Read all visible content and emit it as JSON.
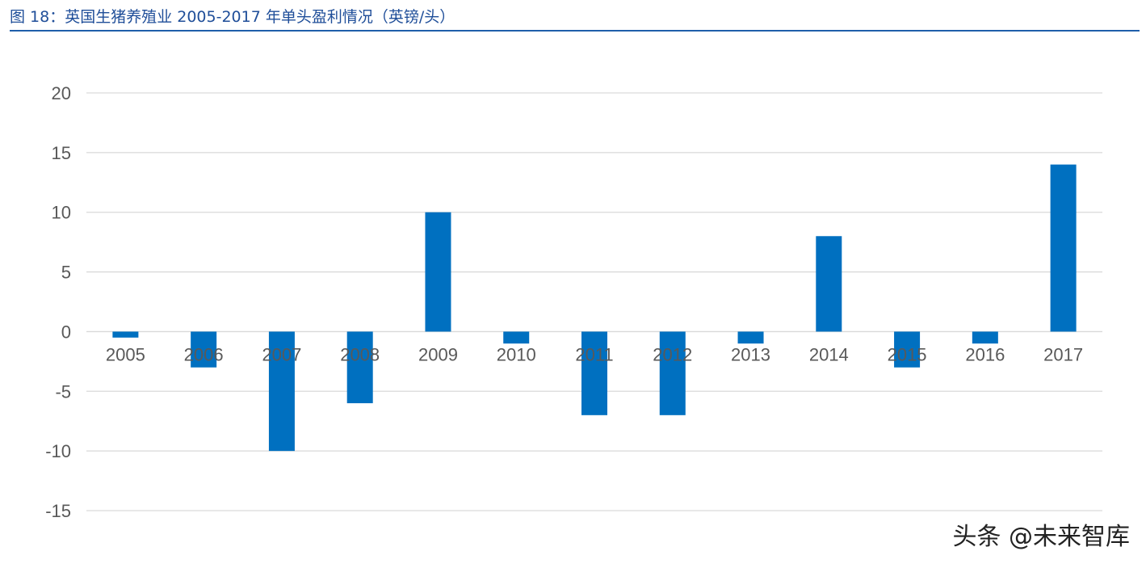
{
  "header": {
    "title": "图 18：英国生猪养殖业 2005-2017 年单头盈利情况（英镑/头）"
  },
  "watermark": "头条 @未来智库",
  "colors": {
    "bar": "#0070c0",
    "grid": "#d9d9d9",
    "title": "#1f4e99",
    "rule": "#1f5faa"
  },
  "chart_data": {
    "type": "bar",
    "title": "图 18：英国生猪养殖业 2005-2017 年单头盈利情况（英镑/头）",
    "xlabel": "",
    "ylabel": "",
    "categories": [
      "2005",
      "2006",
      "2007",
      "2008",
      "2009",
      "2010",
      "2011",
      "2012",
      "2013",
      "2014",
      "2015",
      "2016",
      "2017"
    ],
    "values": [
      -0.5,
      -3,
      -10,
      -6,
      10,
      -1,
      -7,
      -7,
      -1,
      8,
      -3,
      -1,
      14
    ],
    "ylim": [
      -15,
      20
    ],
    "yticks": [
      20,
      15,
      10,
      5,
      0,
      -5,
      -10,
      -15
    ],
    "grid": true,
    "legend": "none"
  }
}
